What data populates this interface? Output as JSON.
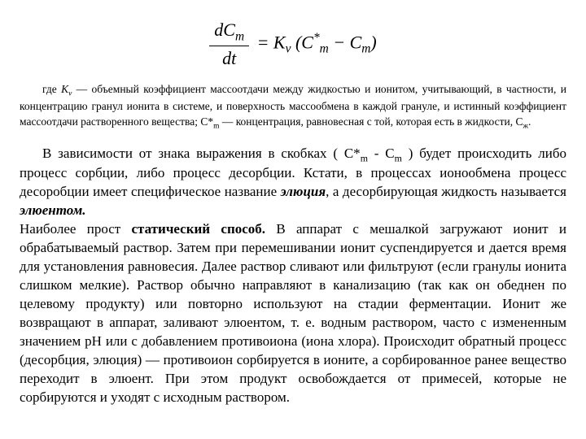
{
  "equation": {
    "frac_top": "dC",
    "frac_top_sub": "m",
    "frac_bot": "dt",
    "rhs_pre": " = K",
    "rhs_sub1": "v",
    "rhs_mid": " (C",
    "rhs_sup": "*",
    "rhs_sub2": "m",
    "rhs_mid2": " − C",
    "rhs_sub3": "m",
    "rhs_end": ")"
  },
  "note": {
    "t1": "где ",
    "kv": "K",
    "kv_sub": "v",
    "t2": " — объемный коэффициент массоотдачи между жидкостью и ионитом, учитывающий, в частности, и концентрацию гранул ионита в системе, и поверхность массообмена в каждой грануле, и истинный коэффициент массоотдачи растворенного вещества; C*",
    "t2_sub": "m",
    "t3": " — концентрация, равновесная с той, которая есть в жидкости, C",
    "t3_sub": "ж",
    "t4": "."
  },
  "body": {
    "p1a": "В зависимости от знака выражения в скобках ( C*",
    "p1a_sub": "m",
    "p1b": " - C",
    "p1b_sub": "m",
    "p1c": " ) будет происходить либо процесс сорбции, либо процесс десорбции. Кстати, в процессах ионообмена процесс десоробции имеет специфическое название ",
    "p1d": "элюция",
    "p1e": ", а десорбирующая жидкость называется ",
    "p1f": "элюентом.",
    "p2a": "Наиболее прост ",
    "p2b": "статический способ.",
    "p2c": " В аппарат с мешалкой загружают ионит и обрабатываемый раствор. Затем при перемешивании  ионит суспендируется и дается время для установления равновесия. Далее раствор сливают или фильтруют (если гранулы ионита слишком мелкие). Раствор обычно направляют в канализацию (так как он обеднен по целевому продукту) или повторно используют на стадии ферментации. Ионит же возвращают в аппарат, заливают элюентом, т. е. водным раствором, часто с измененным значением pH или с добавлением противоиона (иона хлора). Происходит обратный процесс (десорбция, элюция) — противоион сорбируется в ионите, а сорбированное ранее вещество переходит в элюент. При этом продукт освобождается от примесей, которые не сорбируются и уходят с исходным раствором."
  },
  "style": {
    "body_font_size": 17,
    "note_font_size": 13.5,
    "eq_font_size": 22,
    "text_color": "#000000",
    "bg_color": "#ffffff"
  }
}
